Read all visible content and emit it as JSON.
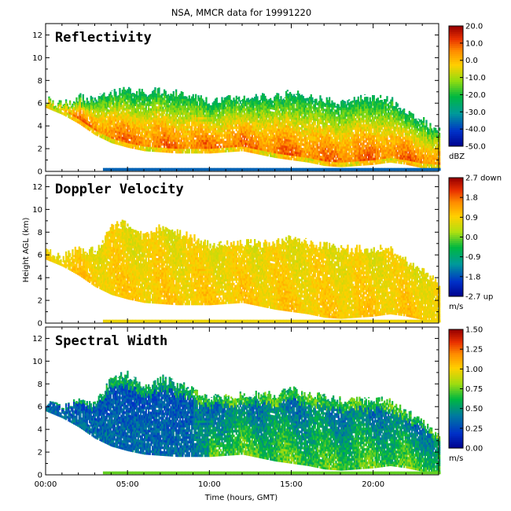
{
  "chart_data": {
    "type": "heatmap",
    "title": "NSA, MMCR data for 19991220",
    "xlabel": "Time (hours, GMT)",
    "ylabel": "Height AGL (km)",
    "xlim": [
      0,
      24
    ],
    "x_ticks": [
      {
        "value": 0,
        "label": "00:00"
      },
      {
        "value": 5,
        "label": "05:00"
      },
      {
        "value": 10,
        "label": "10:00"
      },
      {
        "value": 15,
        "label": "15:00"
      },
      {
        "value": 20,
        "label": "20:00"
      }
    ],
    "ylim": [
      0,
      13
    ],
    "y_ticks": [
      0,
      2,
      4,
      6,
      8,
      10,
      12
    ],
    "panels": [
      {
        "name": "Reflectivity",
        "colorbar": {
          "unit": "dBZ",
          "range": [
            -50,
            20
          ],
          "tick_labels": [
            "20.0",
            "10.0",
            "0.0",
            "-10.0",
            "-20.0",
            "-30.0",
            "-40.0",
            "-50.0"
          ]
        },
        "cloud_base_km": [
          [
            0,
            5.6
          ],
          [
            1,
            5
          ],
          [
            2,
            4.2
          ],
          [
            3,
            3.2
          ],
          [
            4,
            2.5
          ],
          [
            5,
            2.1
          ],
          [
            6,
            1.8
          ],
          [
            8,
            1.6
          ],
          [
            10,
            1.6
          ],
          [
            12,
            1.8
          ],
          [
            13,
            1.5
          ],
          [
            14,
            1.2
          ],
          [
            15,
            1
          ],
          [
            16,
            0.8
          ],
          [
            17,
            0.5
          ],
          [
            18,
            0.4
          ],
          [
            20,
            0.6
          ],
          [
            21,
            0.8
          ],
          [
            22,
            0.6
          ],
          [
            23,
            0.3
          ],
          [
            24,
            0.2
          ]
        ],
        "cloud_top_km": [
          [
            0,
            6.3
          ],
          [
            1,
            5.8
          ],
          [
            2,
            6.5
          ],
          [
            3,
            6.3
          ],
          [
            4,
            6.8
          ],
          [
            5,
            7.2
          ],
          [
            6,
            6.8
          ],
          [
            7,
            7.2
          ],
          [
            8,
            6.8
          ],
          [
            9,
            6.6
          ],
          [
            10,
            6.2
          ],
          [
            12,
            6.5
          ],
          [
            14,
            6.5
          ],
          [
            15,
            7
          ],
          [
            16,
            6.5
          ],
          [
            17,
            6.3
          ],
          [
            18,
            6
          ],
          [
            19,
            6.4
          ],
          [
            20,
            6.5
          ],
          [
            21,
            6.3
          ],
          [
            22,
            5.2
          ],
          [
            23,
            4.5
          ],
          [
            24,
            3.5
          ]
        ]
      },
      {
        "name": "Doppler Velocity",
        "colorbar": {
          "unit": "m/s",
          "range": [
            -2.7,
            2.7
          ],
          "tick_labels": [
            "2.7 down",
            "1.8",
            "0.9",
            "0.0",
            "-0.9",
            "-1.8",
            "-2.7 up"
          ]
        },
        "cloud_base_km": [
          [
            0,
            5.6
          ],
          [
            1,
            5
          ],
          [
            2,
            4.2
          ],
          [
            3,
            3.2
          ],
          [
            4,
            2.5
          ],
          [
            5,
            2.1
          ],
          [
            6,
            1.8
          ],
          [
            8,
            1.6
          ],
          [
            10,
            1.6
          ],
          [
            12,
            1.8
          ],
          [
            13,
            1.5
          ],
          [
            14,
            1.2
          ],
          [
            15,
            1
          ],
          [
            16,
            0.8
          ],
          [
            17,
            0.5
          ],
          [
            18,
            0.4
          ],
          [
            20,
            0.6
          ],
          [
            21,
            0.8
          ],
          [
            22,
            0.6
          ],
          [
            23,
            0.3
          ],
          [
            24,
            0.2
          ]
        ],
        "cloud_top_km": [
          [
            0,
            6.3
          ],
          [
            1,
            5.8
          ],
          [
            2,
            6.5
          ],
          [
            3,
            6.3
          ],
          [
            4,
            8.5
          ],
          [
            5,
            8.8
          ],
          [
            6,
            7.5
          ],
          [
            7,
            8.5
          ],
          [
            8,
            8
          ],
          [
            9,
            7.5
          ],
          [
            10,
            6.8
          ],
          [
            12,
            7
          ],
          [
            14,
            7
          ],
          [
            15,
            7.5
          ],
          [
            16,
            7
          ],
          [
            17,
            6.8
          ],
          [
            18,
            6.5
          ],
          [
            19,
            6.5
          ],
          [
            20,
            6.5
          ],
          [
            21,
            6.5
          ],
          [
            22,
            5.5
          ],
          [
            23,
            4.5
          ],
          [
            24,
            3.5
          ]
        ]
      },
      {
        "name": "Spectral Width",
        "colorbar": {
          "unit": "m/s",
          "range": [
            0,
            1.5
          ],
          "tick_labels": [
            "1.50",
            "1.25",
            "1.00",
            "0.75",
            "0.50",
            "0.25",
            "0.00"
          ]
        },
        "cloud_base_km": [
          [
            0,
            5.6
          ],
          [
            1,
            5
          ],
          [
            2,
            4.2
          ],
          [
            3,
            3.2
          ],
          [
            4,
            2.5
          ],
          [
            5,
            2.1
          ],
          [
            6,
            1.8
          ],
          [
            8,
            1.6
          ],
          [
            10,
            1.6
          ],
          [
            12,
            1.8
          ],
          [
            13,
            1.5
          ],
          [
            14,
            1.2
          ],
          [
            15,
            1
          ],
          [
            16,
            0.8
          ],
          [
            17,
            0.5
          ],
          [
            18,
            0.4
          ],
          [
            20,
            0.6
          ],
          [
            21,
            0.8
          ],
          [
            22,
            0.6
          ],
          [
            23,
            0.3
          ],
          [
            24,
            0.2
          ]
        ],
        "cloud_top_km": [
          [
            0,
            6.3
          ],
          [
            1,
            5.8
          ],
          [
            2,
            6.5
          ],
          [
            3,
            6.3
          ],
          [
            4,
            8.5
          ],
          [
            5,
            8.8
          ],
          [
            6,
            7.5
          ],
          [
            7,
            8.5
          ],
          [
            8,
            8
          ],
          [
            9,
            7.5
          ],
          [
            10,
            6.8
          ],
          [
            12,
            7
          ],
          [
            14,
            7
          ],
          [
            15,
            7.5
          ],
          [
            16,
            7
          ],
          [
            17,
            6.8
          ],
          [
            18,
            6.5
          ],
          [
            19,
            6.5
          ],
          [
            20,
            6.5
          ],
          [
            21,
            6.5
          ],
          [
            22,
            5.5
          ],
          [
            23,
            4.5
          ],
          [
            24,
            3.5
          ]
        ]
      }
    ]
  }
}
